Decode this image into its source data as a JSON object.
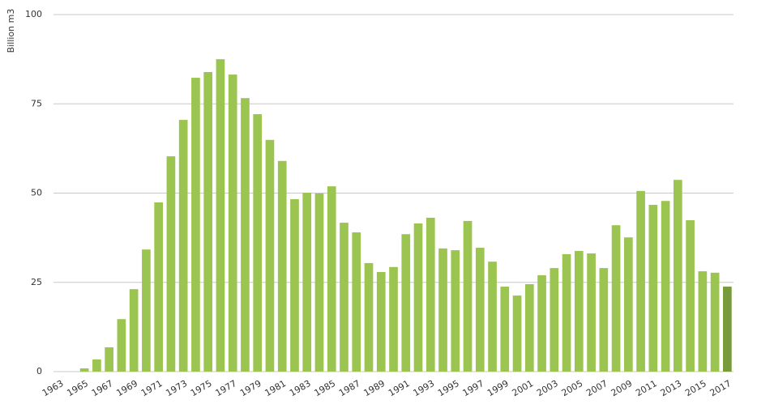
{
  "chart_data": {
    "type": "bar",
    "y_label": "Billion m3",
    "categories": [
      "1963",
      null,
      "1965",
      null,
      "1967",
      null,
      "1969",
      null,
      "1971",
      null,
      "1973",
      null,
      "1975",
      null,
      "1977",
      null,
      "1979",
      null,
      "1981",
      null,
      "1983",
      null,
      "1985",
      null,
      "1987",
      null,
      "1989",
      null,
      "1991",
      null,
      "1993",
      null,
      "1995",
      null,
      "1997",
      null,
      "1999",
      null,
      "2001",
      null,
      "2003",
      null,
      "2005",
      null,
      "2007",
      null,
      "2009",
      null,
      "2011",
      null,
      "2013",
      null,
      "2015",
      null,
      "2017"
    ],
    "values": [
      0,
      0,
      0.9,
      3.4,
      6.8,
      14.7,
      23.1,
      34.2,
      47.4,
      60.3,
      70.5,
      82.3,
      83.9,
      87.5,
      83.2,
      76.6,
      72.1,
      64.9,
      59.0,
      48.3,
      50.1,
      49.9,
      51.9,
      41.7,
      39.0,
      30.4,
      27.9,
      29.3,
      38.5,
      41.5,
      43.1,
      34.5,
      34.0,
      42.2,
      34.7,
      30.8,
      23.8,
      21.3,
      24.5,
      27.0,
      29.0,
      32.9,
      33.8,
      33.1,
      29.0,
      41.0,
      37.6,
      50.6,
      46.7,
      47.8,
      53.7,
      42.4,
      28.1,
      27.7,
      23.8
    ],
    "colors": [
      "#9bc550",
      "#9bc550",
      "#9bc550",
      "#9bc550",
      "#9bc550",
      "#9bc550",
      "#9bc550",
      "#9bc550",
      "#9bc550",
      "#9bc550",
      "#9bc550",
      "#9bc550",
      "#9bc550",
      "#9bc550",
      "#9bc550",
      "#9bc550",
      "#9bc550",
      "#9bc550",
      "#9bc550",
      "#9bc550",
      "#9bc550",
      "#9bc550",
      "#9bc550",
      "#9bc550",
      "#9bc550",
      "#9bc550",
      "#9bc550",
      "#9bc550",
      "#9bc550",
      "#9bc550",
      "#9bc550",
      "#9bc550",
      "#9bc550",
      "#9bc550",
      "#9bc550",
      "#9bc550",
      "#9bc550",
      "#9bc550",
      "#9bc550",
      "#9bc550",
      "#9bc550",
      "#9bc550",
      "#9bc550",
      "#9bc550",
      "#9bc550",
      "#9bc550",
      "#9bc550",
      "#9bc550",
      "#9bc550",
      "#9bc550",
      "#9bc550",
      "#9bc550",
      "#9bc550",
      "#9bc550",
      "#779a3a"
    ],
    "ylim": [
      0,
      100
    ],
    "yticks": [
      0,
      25,
      50,
      75,
      100
    ],
    "grid": true
  }
}
